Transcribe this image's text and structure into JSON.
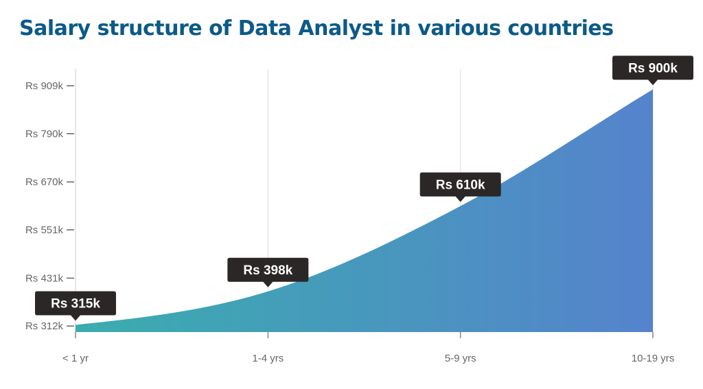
{
  "chart_data": {
    "type": "area",
    "title": "Salary structure of Data Analyst in various countries",
    "categories": [
      "< 1 yr",
      "1-4 yrs",
      "5-9 yrs",
      "10-19 yrs"
    ],
    "values": [
      315,
      398,
      610,
      900
    ],
    "data_labels": [
      "Rs 315k",
      "Rs 398k",
      "Rs 610k",
      "Rs 900k"
    ],
    "unit": "Rs k",
    "y_ticks": [
      312,
      431,
      551,
      670,
      790,
      909
    ],
    "y_tick_labels": [
      "Rs 312k",
      "Rs 431k",
      "Rs 551k",
      "Rs 670k",
      "Rs 790k",
      "Rs 909k"
    ],
    "ylim": [
      297,
      909
    ],
    "grid": "vertical",
    "colors": {
      "gradient_start": "#3aadae",
      "gradient_end": "#5583cc",
      "title": "#0c5a88",
      "label_bg": "#2b2727"
    }
  }
}
